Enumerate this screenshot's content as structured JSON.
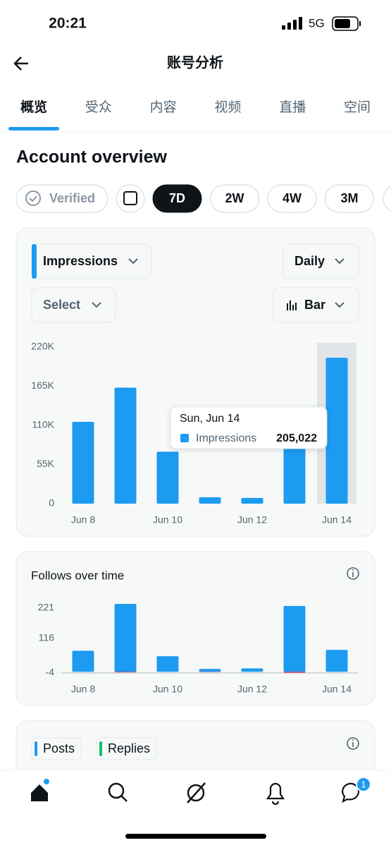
{
  "status_bar": {
    "time": "20:21",
    "network": "5G"
  },
  "header": {
    "title": "账号分析"
  },
  "tabs": [
    "概览",
    "受众",
    "内容",
    "视频",
    "直播",
    "空间"
  ],
  "section_title": "Account overview",
  "filters": {
    "verified": "Verified",
    "ranges": [
      "7D",
      "2W",
      "4W",
      "3M"
    ]
  },
  "chart_data": [
    {
      "type": "bar",
      "metric": "Impressions",
      "interval": "Daily",
      "compare": "Select",
      "chart_style": "Bar",
      "categories": [
        "Jun 8",
        null,
        "Jun 10",
        null,
        "Jun 12",
        null,
        "Jun 14"
      ],
      "series": [
        {
          "name": "Impressions",
          "color": "#1d9bf0",
          "values": [
            115000,
            163000,
            73000,
            9000,
            8000,
            95000,
            205022
          ],
          "value_labels": [
            null,
            null,
            null,
            null,
            null,
            null,
            "205,022"
          ]
        }
      ],
      "tooltip_title": "Sun, Jun 14",
      "ylim": [
        0,
        220000
      ],
      "yticks": [
        0,
        {
          "value": 55000,
          "label": "55K"
        },
        {
          "value": 110000,
          "label": "110K"
        },
        {
          "value": 165000,
          "label": "165K"
        },
        {
          "value": 220000,
          "label": "220K"
        }
      ]
    },
    {
      "type": "bar",
      "title": "Follows over time",
      "categories": [
        "Jun 8",
        null,
        "Jun 10",
        null,
        "Jun 12",
        null,
        "Jun 14"
      ],
      "series": [
        {
          "color": "#1d9bf0",
          "values": [
            73,
            235,
            54,
            10,
            12,
            228,
            76
          ]
        },
        {
          "color": "#e0245e",
          "values": [
            0,
            -2,
            0,
            -1,
            0,
            -3,
            0
          ]
        }
      ],
      "ylim": [
        -4,
        250
      ],
      "yticks": [
        -4,
        116,
        221
      ]
    }
  ],
  "bottom_card": {
    "legend": [
      {
        "name": "Posts",
        "color": "#1d9bf0"
      },
      {
        "name": "Replies",
        "color": "#17bf63"
      }
    ]
  },
  "nav": {
    "badge": "1"
  }
}
